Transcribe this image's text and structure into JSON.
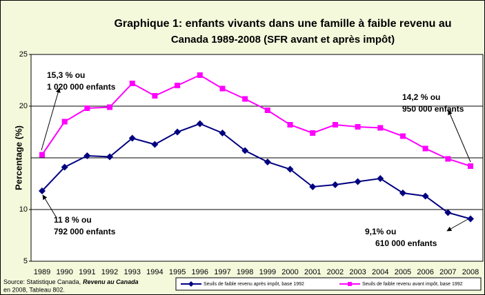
{
  "chart_data": {
    "type": "line",
    "title": [
      "Graphique 1: enfants vivants dans une famille à faible revenu au",
      "Canada 1989-2008 (SFR avant et après impôt)"
    ],
    "ylabel": "Percentage (%)",
    "categories": [
      "1989",
      "1990",
      "1991",
      "1992",
      "1993",
      "1994",
      "1995",
      "1996",
      "1997",
      "1998",
      "1999",
      "2000",
      "2001",
      "2002",
      "2003",
      "2004",
      "2005",
      "2006",
      "2007",
      "2008"
    ],
    "series": [
      {
        "name": "Seuils de faible revenu après impôt, base 1992",
        "color": "#000080",
        "marker": "diamond",
        "values": [
          11.8,
          14.1,
          15.2,
          15.1,
          16.9,
          16.3,
          17.5,
          18.3,
          17.4,
          15.7,
          14.6,
          13.9,
          12.2,
          12.4,
          12.7,
          13.0,
          11.6,
          11.3,
          9.7,
          9.1
        ]
      },
      {
        "name": "Seuils de faible revenu avant impôt, base 1992",
        "color": "#ff00ff",
        "marker": "square",
        "values": [
          15.3,
          18.5,
          19.8,
          19.9,
          22.2,
          21.0,
          22.0,
          23.0,
          21.7,
          20.7,
          19.6,
          18.2,
          17.4,
          18.2,
          18.0,
          17.9,
          17.1,
          15.9,
          14.9,
          14.2
        ]
      }
    ],
    "ylim": [
      5,
      25
    ],
    "yticks": [
      5,
      10,
      20,
      25
    ],
    "gridlines": [
      10,
      15,
      20
    ],
    "annotations": [
      {
        "lines": [
          "15,3 % ou",
          "1 020 000 enfants"
        ]
      },
      {
        "lines": [
          "11 8 % ou",
          "792 000 enfants"
        ]
      },
      {
        "lines": [
          "14,2 % ou",
          "950 000 enfants"
        ]
      },
      {
        "lines": [
          "9,1% ou",
          "610 000 enfants"
        ]
      }
    ],
    "source": [
      "Source: Statistique Canada,",
      "Revenu au Canada",
      "en 2008, Tableau 802."
    ]
  }
}
